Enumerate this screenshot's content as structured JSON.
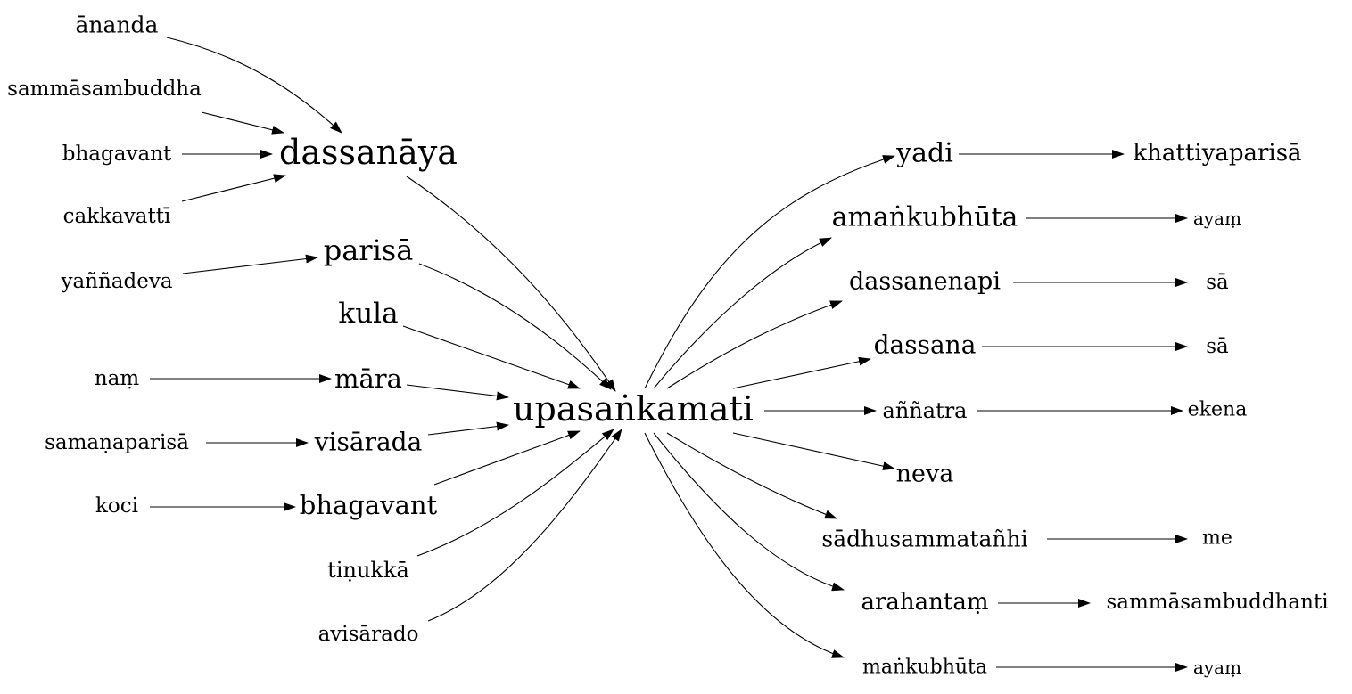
{
  "graph": {
    "center": "upasaṅkamati",
    "nodes": {
      "ananda": "ānanda",
      "sammasambuddha": "sammāsambuddha",
      "bhagavant_l": "bhagavant",
      "cakkavatti": "cakkavattī",
      "yannadeva": "yaññadeva",
      "dassanaya": "dassanāya",
      "parisa": "parisā",
      "kula": "kula",
      "nam": "naṃ",
      "mara": "māra",
      "samanaparisa": "samaṇaparisā",
      "visarada": "visārada",
      "koci": "koci",
      "bhagavant": "bhagavant",
      "tinukka": "tiṇukkā",
      "avisarado": "avisārado",
      "center": "upasaṅkamati",
      "yadi": "yadi",
      "khattiyaparisa": "khattiyaparisā",
      "amankubhuta": "amaṅkubhūta",
      "ayam1": "ayaṃ",
      "dassanenapi": "dassanenapi",
      "sa1": "sā",
      "dassana": "dassana",
      "sa2": "sā",
      "annatra": "aññatra",
      "ekena": "ekena",
      "neva": "neva",
      "sadhusammatanhi": "sādhusammatañhi",
      "me": "me",
      "arahantam": "arahantaṃ",
      "sammasambuddhanti": "sammāsambuddhanti",
      "mankubhuta": "maṅkubhūta",
      "ayam2": "ayaṃ"
    },
    "edges": [
      [
        "ananda",
        "dassanaya"
      ],
      [
        "sammasambuddha",
        "dassanaya"
      ],
      [
        "bhagavant_l",
        "dassanaya"
      ],
      [
        "cakkavatti",
        "dassanaya"
      ],
      [
        "yannadeva",
        "parisa"
      ],
      [
        "nam",
        "mara"
      ],
      [
        "samanaparisa",
        "visarada"
      ],
      [
        "koci",
        "bhagavant"
      ],
      [
        "dassanaya",
        "center"
      ],
      [
        "parisa",
        "center"
      ],
      [
        "kula",
        "center"
      ],
      [
        "mara",
        "center"
      ],
      [
        "visarada",
        "center"
      ],
      [
        "bhagavant",
        "center"
      ],
      [
        "tinukka",
        "center"
      ],
      [
        "avisarado",
        "center"
      ],
      [
        "center",
        "yadi"
      ],
      [
        "center",
        "amankubhuta"
      ],
      [
        "center",
        "dassanenapi"
      ],
      [
        "center",
        "dassana"
      ],
      [
        "center",
        "annatra"
      ],
      [
        "center",
        "neva"
      ],
      [
        "center",
        "sadhusammatanhi"
      ],
      [
        "center",
        "arahantam"
      ],
      [
        "center",
        "mankubhuta"
      ],
      [
        "yadi",
        "khattiyaparisa"
      ],
      [
        "amankubhuta",
        "ayam1"
      ],
      [
        "dassanenapi",
        "sa1"
      ],
      [
        "dassana",
        "sa2"
      ],
      [
        "annatra",
        "ekena"
      ],
      [
        "sadhusammatanhi",
        "me"
      ],
      [
        "arahantam",
        "sammasambuddhanti"
      ],
      [
        "mankubhuta",
        "ayam2"
      ]
    ]
  }
}
